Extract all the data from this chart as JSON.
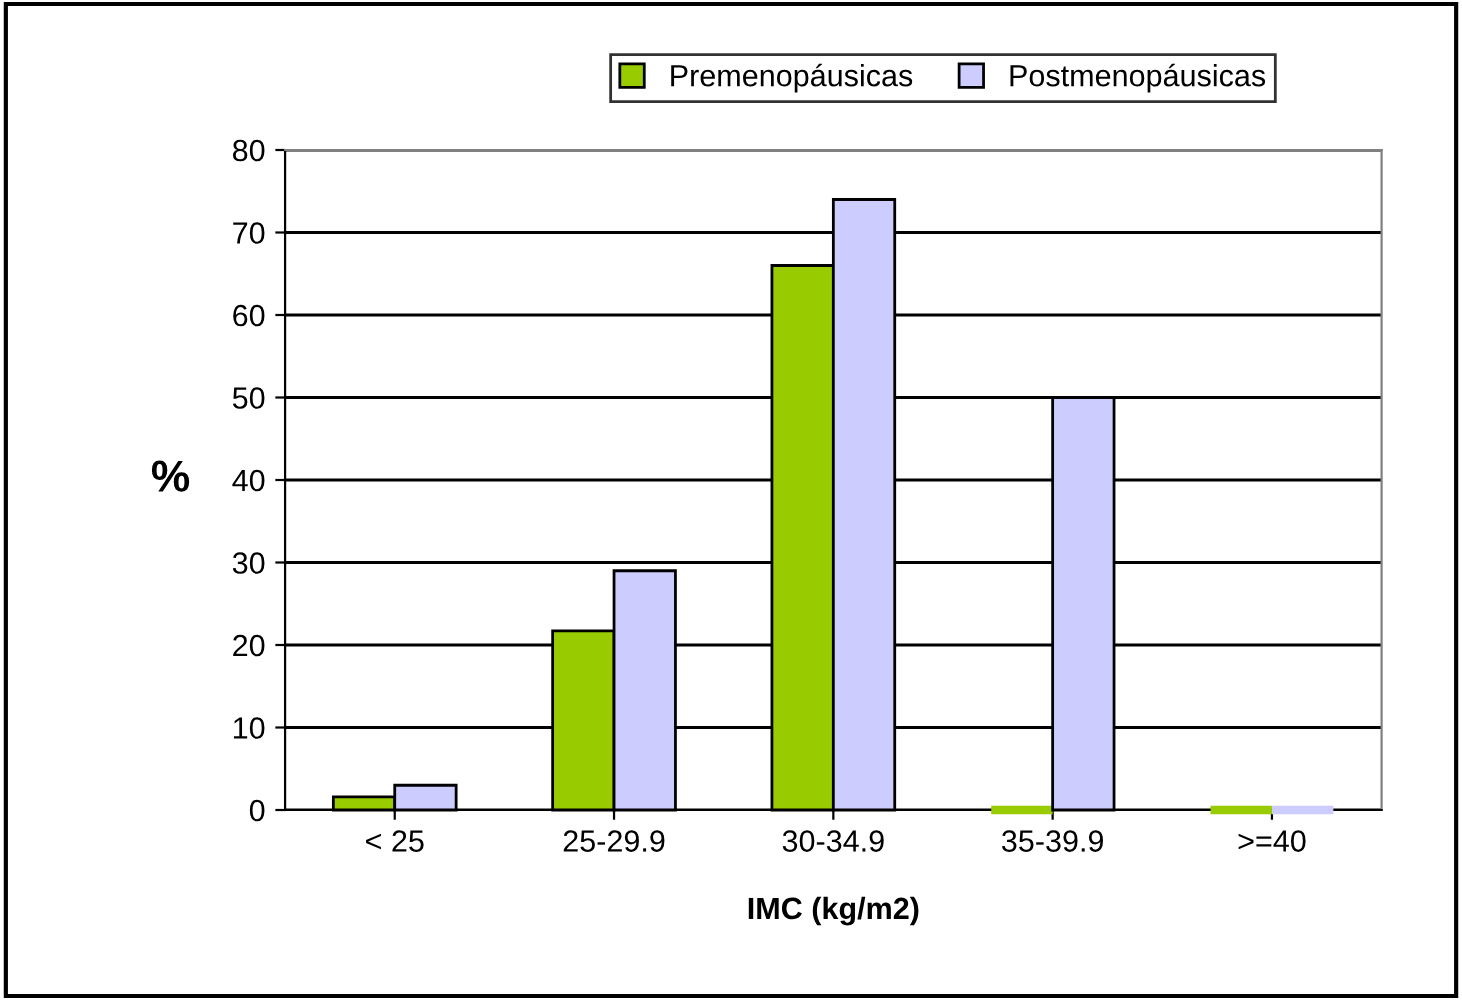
{
  "chart_data": {
    "type": "bar",
    "xlabel": "IMC (kg/m2)",
    "ylabel": "%",
    "categories": [
      "< 25",
      "25-29.9",
      "30-34.9",
      "35-39.9",
      ">=40"
    ],
    "series": [
      {
        "name": "Premenopáusicas",
        "color": "#99cc00",
        "values": [
          1.6,
          21.7,
          66,
          0,
          0
        ]
      },
      {
        "name": "Postmenopáusicas",
        "color": "#ccccff",
        "values": [
          3,
          29,
          74,
          50,
          0
        ]
      }
    ],
    "ylim": [
      0,
      80
    ],
    "yticks": [
      0,
      10,
      20,
      30,
      40,
      50,
      60,
      70,
      80
    ],
    "grid": "y",
    "legend": "top"
  }
}
